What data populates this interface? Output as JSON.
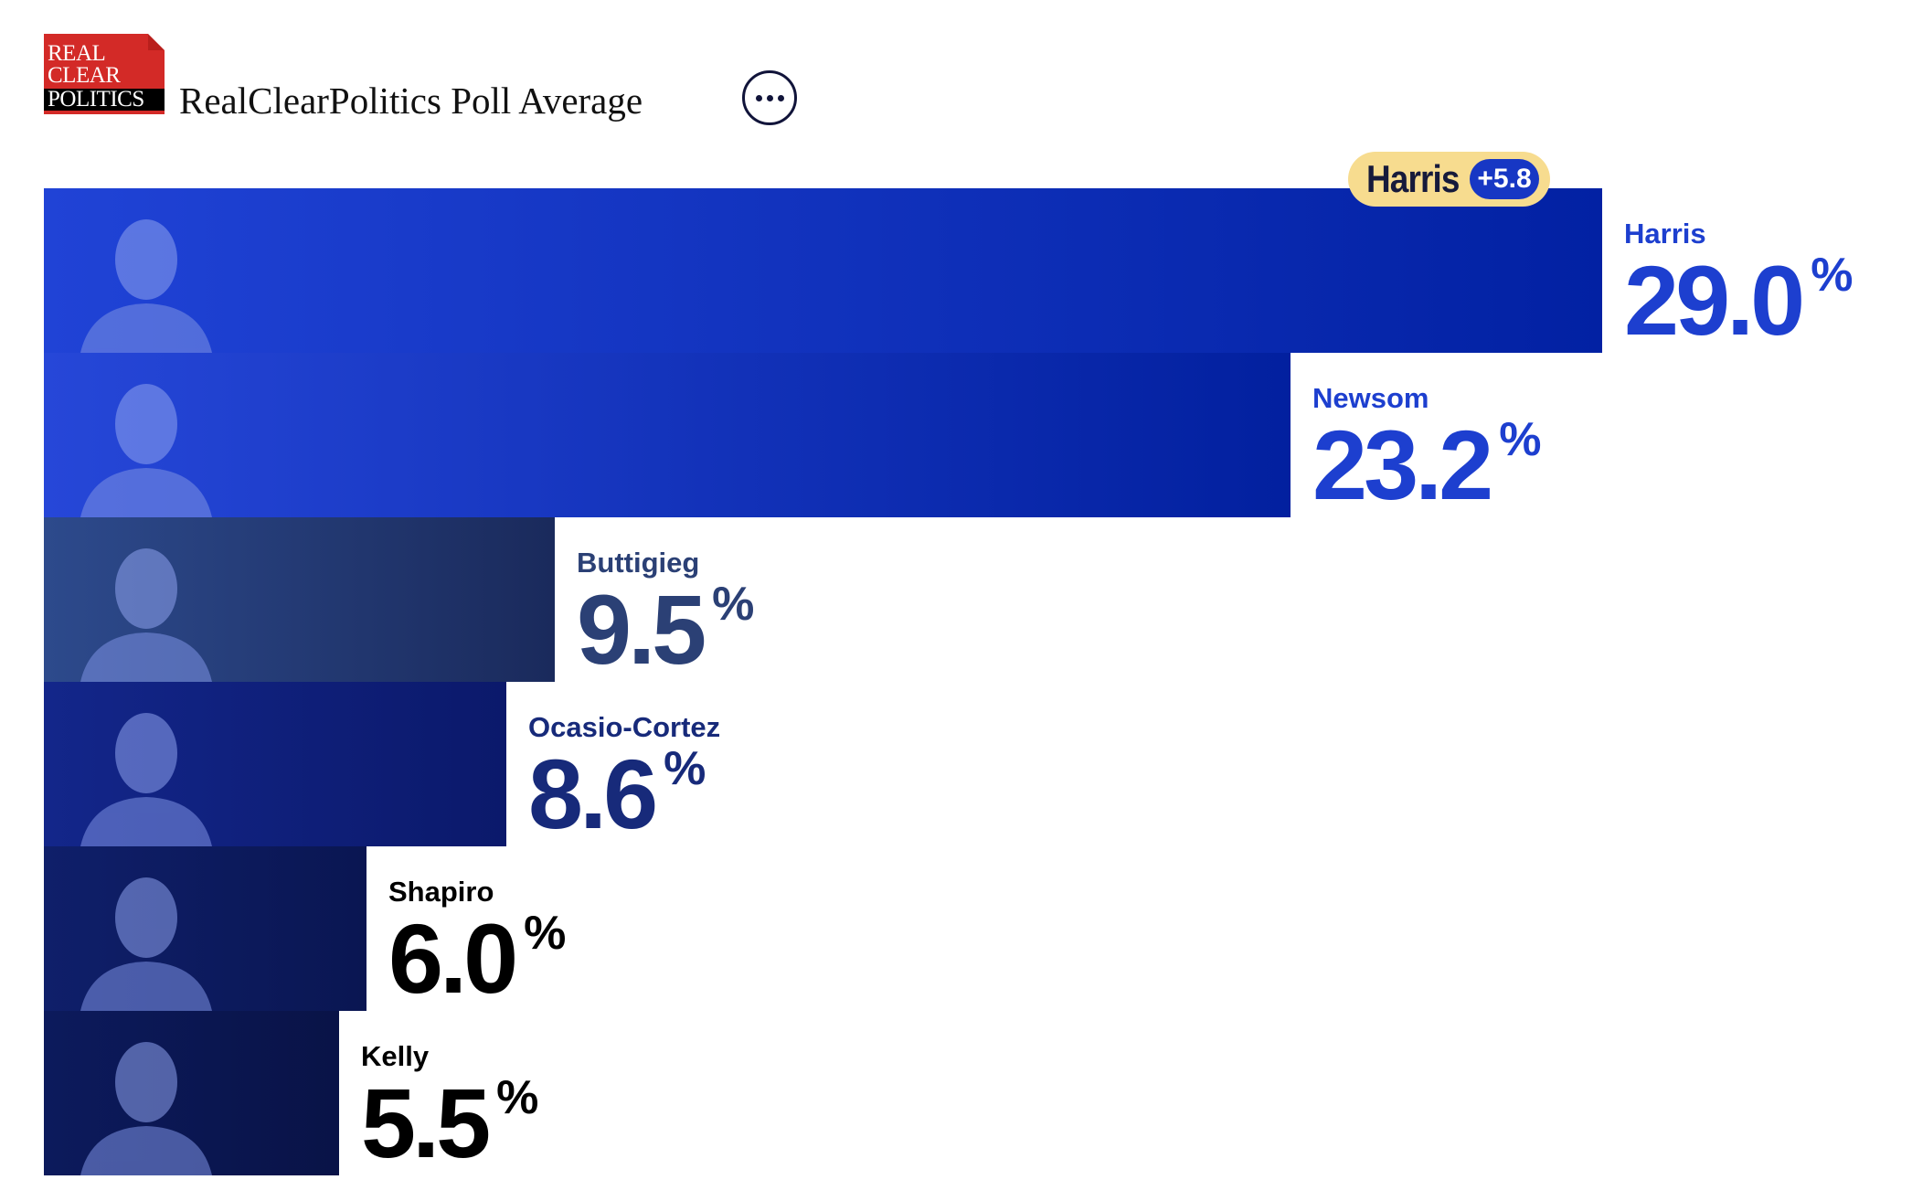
{
  "header": {
    "logo_lines": [
      "REAL",
      "CLEAR",
      "POLITICS"
    ],
    "title": "RealClearPolitics Poll Average",
    "more_icon": "ellipsis-icon"
  },
  "leader_badge": {
    "name": "Harris",
    "margin": "+5.8"
  },
  "chart_data": {
    "type": "bar",
    "orientation": "horizontal",
    "categories": [
      "Harris",
      "Newsom",
      "Buttigieg",
      "Ocasio-Cortez",
      "Shapiro",
      "Kelly"
    ],
    "values": [
      29.0,
      23.2,
      9.5,
      8.6,
      6.0,
      5.5
    ],
    "value_suffix": "%",
    "label_colors": [
      "#1d3fcf",
      "#1d3fcf",
      "#2b4075",
      "#172a7a",
      "#000000",
      "#000000"
    ],
    "bar_colors": [
      [
        "#2043d6",
        "#0221a3"
      ],
      [
        "#2647d8",
        "#02209f"
      ],
      [
        "#2d4a8c",
        "#1a2a5c"
      ],
      [
        "#13268a",
        "#0b196b"
      ],
      [
        "#0f1f6a",
        "#0a1652"
      ],
      [
        "#0c1a5c",
        "#091347"
      ]
    ],
    "xlim": [
      0,
      29.0
    ],
    "title": "RealClearPolitics Poll Average",
    "xlabel": "",
    "ylabel": "",
    "grid": false
  }
}
